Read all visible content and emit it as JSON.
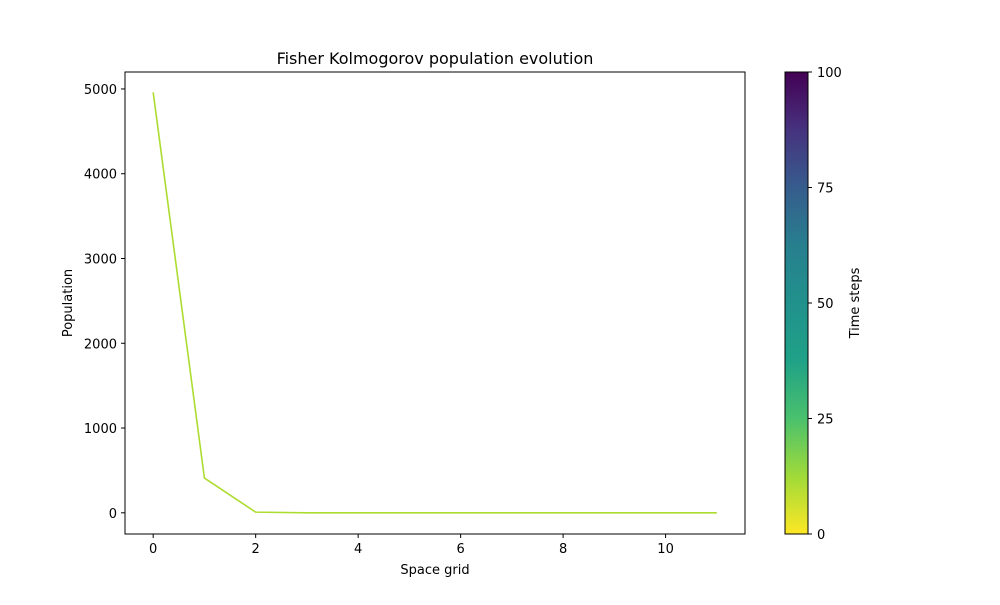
{
  "chart_data": {
    "type": "line",
    "title": "Fisher Kolmogorov population evolution",
    "xlabel": "Space grid",
    "ylabel": "Population",
    "xlim": [
      -0.55,
      11.55
    ],
    "ylim": [
      -250,
      5200
    ],
    "xticks": [
      0,
      2,
      4,
      6,
      8,
      10
    ],
    "yticks": [
      0,
      1000,
      2000,
      3000,
      4000,
      5000
    ],
    "grid": false,
    "series": [
      {
        "color": "#addc30",
        "x": [
          0,
          1,
          2,
          3,
          4,
          5,
          6,
          7,
          8,
          9,
          10,
          11
        ],
        "y": [
          4960,
          410,
          8,
          0,
          0,
          0,
          0,
          0,
          0,
          0,
          0,
          0
        ]
      }
    ],
    "colorbar": {
      "label": "Time steps",
      "min": 0,
      "max": 100,
      "ticks": [
        0,
        25,
        50,
        75,
        100
      ],
      "colormap": "viridis",
      "reversed": true
    }
  }
}
